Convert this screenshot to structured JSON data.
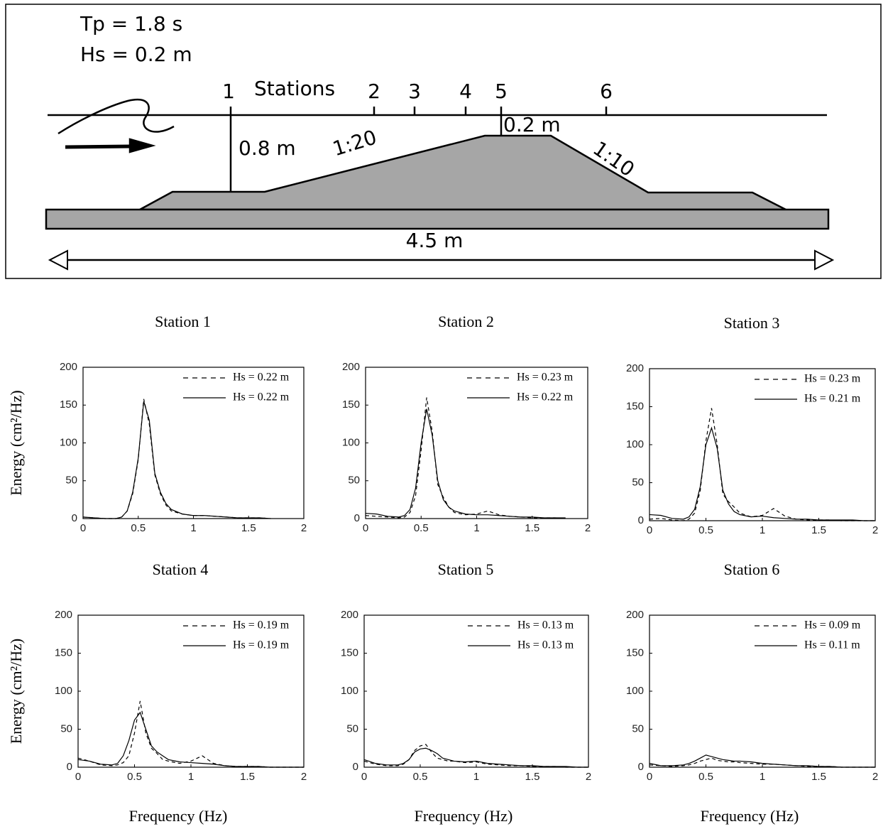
{
  "diagram": {
    "period": "Tp = 1.8 s",
    "height": "Hs = 0.2 m",
    "stations_label": "Stations",
    "stations": [
      "1",
      "2",
      "3",
      "4",
      "5",
      "6"
    ],
    "depth": "0.8 m",
    "front_slope": "1:20",
    "crest_depth": "0.2 m",
    "back_slope": "1:10",
    "length": "4.5 m"
  },
  "chart_data": [
    {
      "type": "line",
      "title": "Station 1",
      "y_label": "Energy (cm²/Hz)",
      "x": [
        0,
        0.1,
        0.2,
        0.3,
        0.35,
        0.4,
        0.45,
        0.5,
        0.55,
        0.6,
        0.65,
        0.7,
        0.75,
        0.8,
        0.9,
        1.0,
        1.1,
        1.2,
        1.3,
        1.4,
        1.5,
        1.6,
        1.7,
        1.8,
        1.9,
        2.0
      ],
      "series": [
        {
          "name": "Hs = 0.22 m",
          "color": "#000000",
          "line_style": "dashed",
          "values": [
            2,
            1,
            0,
            0,
            2,
            10,
            33,
            78,
            158,
            125,
            58,
            33,
            18,
            10,
            6,
            4,
            4,
            3,
            2,
            1,
            1,
            1,
            0,
            null,
            null,
            null
          ]
        },
        {
          "name": "Hs = 0.22 m",
          "color": "#000000",
          "line_style": "solid",
          "values": [
            2,
            1,
            0,
            0,
            2,
            10,
            35,
            80,
            155,
            130,
            60,
            35,
            20,
            12,
            6,
            4,
            4,
            3,
            2,
            1,
            1,
            1,
            0,
            null,
            null,
            null
          ]
        }
      ],
      "xlim": [
        0,
        2
      ],
      "xticks": [
        0,
        0.5,
        1,
        1.5,
        2
      ],
      "ylim": [
        0,
        200
      ],
      "yticks": [
        0,
        50,
        100,
        150,
        200
      ]
    },
    {
      "type": "line",
      "title": "Station 2",
      "x": [
        0,
        0.1,
        0.2,
        0.3,
        0.35,
        0.4,
        0.45,
        0.5,
        0.55,
        0.6,
        0.65,
        0.7,
        0.75,
        0.8,
        0.9,
        1.0,
        1.1,
        1.2,
        1.3,
        1.4,
        1.5,
        1.6,
        1.7,
        1.8,
        1.9,
        2.0
      ],
      "series": [
        {
          "name": "Hs = 0.23 m",
          "color": "#000000",
          "line_style": "dashed",
          "values": [
            4,
            3,
            2,
            1,
            2,
            8,
            30,
            90,
            160,
            115,
            45,
            28,
            15,
            8,
            5,
            6,
            10,
            5,
            3,
            2,
            1,
            1,
            1,
            0,
            null,
            null
          ]
        },
        {
          "name": "Hs = 0.22 m",
          "color": "#000000",
          "line_style": "solid",
          "values": [
            7,
            6,
            3,
            2,
            4,
            12,
            40,
            100,
            145,
            110,
            50,
            25,
            15,
            10,
            6,
            5,
            5,
            4,
            3,
            2,
            2,
            1,
            1,
            1,
            null,
            null
          ]
        }
      ],
      "xlim": [
        0,
        2
      ],
      "xticks": [
        0,
        0.5,
        1,
        1.5,
        2
      ],
      "ylim": [
        0,
        200
      ],
      "yticks": [
        0,
        50,
        100,
        150,
        200
      ]
    },
    {
      "type": "line",
      "title": "Station 3",
      "x": [
        0,
        0.1,
        0.2,
        0.3,
        0.35,
        0.4,
        0.45,
        0.5,
        0.55,
        0.6,
        0.65,
        0.7,
        0.75,
        0.8,
        0.9,
        1.0,
        1.1,
        1.2,
        1.3,
        1.4,
        1.5,
        1.6,
        1.7,
        1.8,
        1.9,
        2.0
      ],
      "series": [
        {
          "name": "Hs = 0.23 m",
          "color": "#000000",
          "line_style": "dashed",
          "values": [
            2,
            3,
            1,
            0,
            2,
            10,
            40,
            105,
            148,
            100,
            35,
            25,
            18,
            10,
            5,
            7,
            16,
            6,
            2,
            1,
            1,
            1,
            0,
            0,
            0,
            0
          ]
        },
        {
          "name": "Hs = 0.21 m",
          "color": "#000000",
          "line_style": "solid",
          "values": [
            8,
            7,
            3,
            2,
            5,
            15,
            45,
            100,
            122,
            95,
            40,
            22,
            12,
            8,
            5,
            6,
            4,
            3,
            2,
            2,
            1,
            1,
            1,
            1,
            0,
            0
          ]
        }
      ],
      "xlim": [
        0,
        2
      ],
      "xticks": [
        0,
        0.5,
        1,
        1.5,
        2
      ],
      "ylim": [
        0,
        200
      ],
      "yticks": [
        0,
        50,
        100,
        150,
        200
      ]
    },
    {
      "type": "line",
      "title": "Station 4",
      "y_label": "Energy (cm²/Hz)",
      "x_label": "Frequency (Hz)",
      "x": [
        0,
        0.1,
        0.2,
        0.3,
        0.35,
        0.4,
        0.45,
        0.5,
        0.55,
        0.6,
        0.65,
        0.7,
        0.75,
        0.8,
        0.9,
        1.0,
        1.1,
        1.2,
        1.3,
        1.4,
        1.5,
        1.6,
        1.7,
        1.8,
        1.9,
        2.0
      ],
      "series": [
        {
          "name": "Hs = 0.19 m",
          "color": "#000000",
          "line_style": "dashed",
          "values": [
            12,
            8,
            3,
            2,
            3,
            6,
            15,
            45,
            87,
            45,
            25,
            18,
            10,
            8,
            5,
            8,
            15,
            5,
            2,
            1,
            1,
            1,
            0,
            0,
            0,
            0
          ]
        },
        {
          "name": "Hs = 0.19 m",
          "color": "#000000",
          "line_style": "solid",
          "values": [
            10,
            8,
            4,
            3,
            5,
            15,
            35,
            62,
            72,
            50,
            28,
            20,
            15,
            10,
            7,
            6,
            5,
            4,
            2,
            1,
            1,
            1,
            0,
            0,
            0,
            0
          ]
        }
      ],
      "xlim": [
        0,
        2
      ],
      "xticks": [
        0,
        0.5,
        1,
        1.5,
        2
      ],
      "ylim": [
        0,
        200
      ],
      "yticks": [
        0,
        50,
        100,
        150,
        200
      ]
    },
    {
      "type": "line",
      "title": "Station 5",
      "x_label": "Frequency (Hz)",
      "x": [
        0,
        0.1,
        0.2,
        0.3,
        0.35,
        0.4,
        0.45,
        0.5,
        0.55,
        0.6,
        0.65,
        0.7,
        0.75,
        0.8,
        0.9,
        1.0,
        1.1,
        1.2,
        1.3,
        1.4,
        1.5,
        1.6,
        1.7,
        1.8,
        1.9,
        2.0
      ],
      "series": [
        {
          "name": "Hs = 0.13 m",
          "color": "#000000",
          "line_style": "dashed",
          "values": [
            8,
            4,
            2,
            2,
            4,
            10,
            22,
            28,
            30,
            20,
            12,
            10,
            8,
            8,
            6,
            7,
            4,
            3,
            2,
            2,
            1,
            1,
            1,
            0,
            0,
            0
          ]
        },
        {
          "name": "Hs = 0.13 m",
          "color": "#000000",
          "line_style": "solid",
          "values": [
            10,
            5,
            3,
            3,
            5,
            10,
            20,
            24,
            25,
            22,
            18,
            12,
            10,
            8,
            7,
            8,
            5,
            4,
            3,
            2,
            2,
            1,
            1,
            1,
            0,
            0
          ]
        }
      ],
      "xlim": [
        0,
        2
      ],
      "xticks": [
        0,
        0.5,
        1,
        1.5,
        2
      ],
      "ylim": [
        0,
        200
      ],
      "yticks": [
        0,
        50,
        100,
        150,
        200
      ]
    },
    {
      "type": "line",
      "title": "Station 6",
      "x_label": "Frequency (Hz)",
      "x": [
        0,
        0.1,
        0.2,
        0.3,
        0.35,
        0.4,
        0.45,
        0.5,
        0.55,
        0.6,
        0.65,
        0.7,
        0.75,
        0.8,
        0.9,
        1.0,
        1.1,
        1.2,
        1.3,
        1.4,
        1.5,
        1.6,
        1.7,
        1.8,
        1.9,
        2.0
      ],
      "series": [
        {
          "name": "Hs = 0.09 m",
          "color": "#000000",
          "line_style": "dashed",
          "values": [
            3,
            2,
            1,
            2,
            3,
            5,
            8,
            10,
            12,
            9,
            8,
            7,
            7,
            6,
            5,
            4,
            4,
            3,
            2,
            1,
            1,
            1,
            0,
            0,
            0,
            0
          ]
        },
        {
          "name": "Hs = 0.11 m",
          "color": "#000000",
          "line_style": "solid",
          "values": [
            5,
            2,
            2,
            3,
            5,
            8,
            12,
            16,
            14,
            12,
            10,
            9,
            8,
            8,
            7,
            5,
            4,
            3,
            2,
            2,
            1,
            1,
            0,
            0,
            0,
            0
          ]
        }
      ],
      "xlim": [
        0,
        2
      ],
      "xticks": [
        0,
        0.5,
        1,
        1.5,
        2
      ],
      "ylim": [
        0,
        200
      ],
      "yticks": [
        0,
        50,
        100,
        150,
        200
      ]
    }
  ]
}
